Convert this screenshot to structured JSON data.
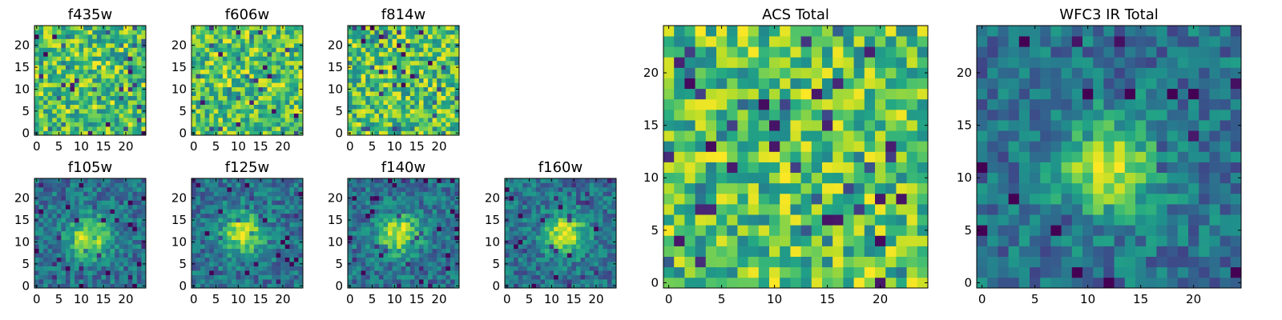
{
  "chart_data": [
    {
      "type": "heatmap",
      "title": "f435w",
      "size": 25,
      "colormap": "viridis",
      "xticks": [
        0,
        5,
        10,
        15,
        20
      ],
      "yticks": [
        0,
        5,
        10,
        15,
        20
      ],
      "xlim": [
        -0.5,
        24.5
      ],
      "ylim": [
        -0.5,
        24.5
      ],
      "grid": false,
      "pattern": "noise"
    },
    {
      "type": "heatmap",
      "title": "f606w",
      "size": 25,
      "colormap": "viridis",
      "xticks": [
        0,
        5,
        10,
        15,
        20
      ],
      "yticks": [
        0,
        5,
        10,
        15,
        20
      ],
      "xlim": [
        -0.5,
        24.5
      ],
      "ylim": [
        -0.5,
        24.5
      ],
      "grid": false,
      "pattern": "noise"
    },
    {
      "type": "heatmap",
      "title": "f814w",
      "size": 25,
      "colormap": "viridis",
      "xticks": [
        0,
        5,
        10,
        15,
        20
      ],
      "yticks": [
        0,
        5,
        10,
        15,
        20
      ],
      "xlim": [
        -0.5,
        24.5
      ],
      "ylim": [
        -0.5,
        24.5
      ],
      "grid": false,
      "pattern": "noise"
    },
    {
      "type": "heatmap",
      "title": "f105w",
      "size": 25,
      "colormap": "viridis",
      "xticks": [
        0,
        5,
        10,
        15,
        20
      ],
      "yticks": [
        0,
        5,
        10,
        15,
        20
      ],
      "xlim": [
        -0.5,
        24.5
      ],
      "ylim": [
        -0.5,
        24.5
      ],
      "grid": false,
      "pattern": "source",
      "source_center": [
        12,
        11
      ]
    },
    {
      "type": "heatmap",
      "title": "f125w",
      "size": 25,
      "colormap": "viridis",
      "xticks": [
        0,
        5,
        10,
        15,
        20
      ],
      "yticks": [
        0,
        5,
        10,
        15,
        20
      ],
      "xlim": [
        -0.5,
        24.5
      ],
      "ylim": [
        -0.5,
        24.5
      ],
      "grid": false,
      "pattern": "source",
      "source_center": [
        11,
        12
      ]
    },
    {
      "type": "heatmap",
      "title": "f140w",
      "size": 25,
      "colormap": "viridis",
      "xticks": [
        0,
        5,
        10,
        15,
        20
      ],
      "yticks": [
        0,
        5,
        10,
        15,
        20
      ],
      "xlim": [
        -0.5,
        24.5
      ],
      "ylim": [
        -0.5,
        24.5
      ],
      "grid": false,
      "pattern": "source",
      "source_center": [
        11,
        12
      ]
    },
    {
      "type": "heatmap",
      "title": "f160w",
      "size": 25,
      "colormap": "viridis",
      "xticks": [
        0,
        5,
        10,
        15,
        20
      ],
      "yticks": [
        0,
        5,
        10,
        15,
        20
      ],
      "xlim": [
        -0.5,
        24.5
      ],
      "ylim": [
        -0.5,
        24.5
      ],
      "grid": false,
      "pattern": "source",
      "source_center": [
        13,
        12
      ]
    },
    {
      "type": "heatmap",
      "title": "ACS Total",
      "size": 25,
      "colormap": "viridis",
      "xticks": [
        0,
        5,
        10,
        15,
        20
      ],
      "yticks": [
        0,
        5,
        10,
        15,
        20
      ],
      "xlim": [
        -0.5,
        24.5
      ],
      "ylim": [
        -0.5,
        24.5
      ],
      "grid": false,
      "pattern": "noise"
    },
    {
      "type": "heatmap",
      "title": "WFC3 IR Total",
      "size": 25,
      "colormap": "viridis",
      "xticks": [
        0,
        5,
        10,
        15,
        20
      ],
      "yticks": [
        0,
        5,
        10,
        15,
        20
      ],
      "xlim": [
        -0.5,
        24.5
      ],
      "ylim": [
        -0.5,
        24.5
      ],
      "grid": false,
      "pattern": "source",
      "source_center": [
        12,
        11
      ]
    }
  ]
}
